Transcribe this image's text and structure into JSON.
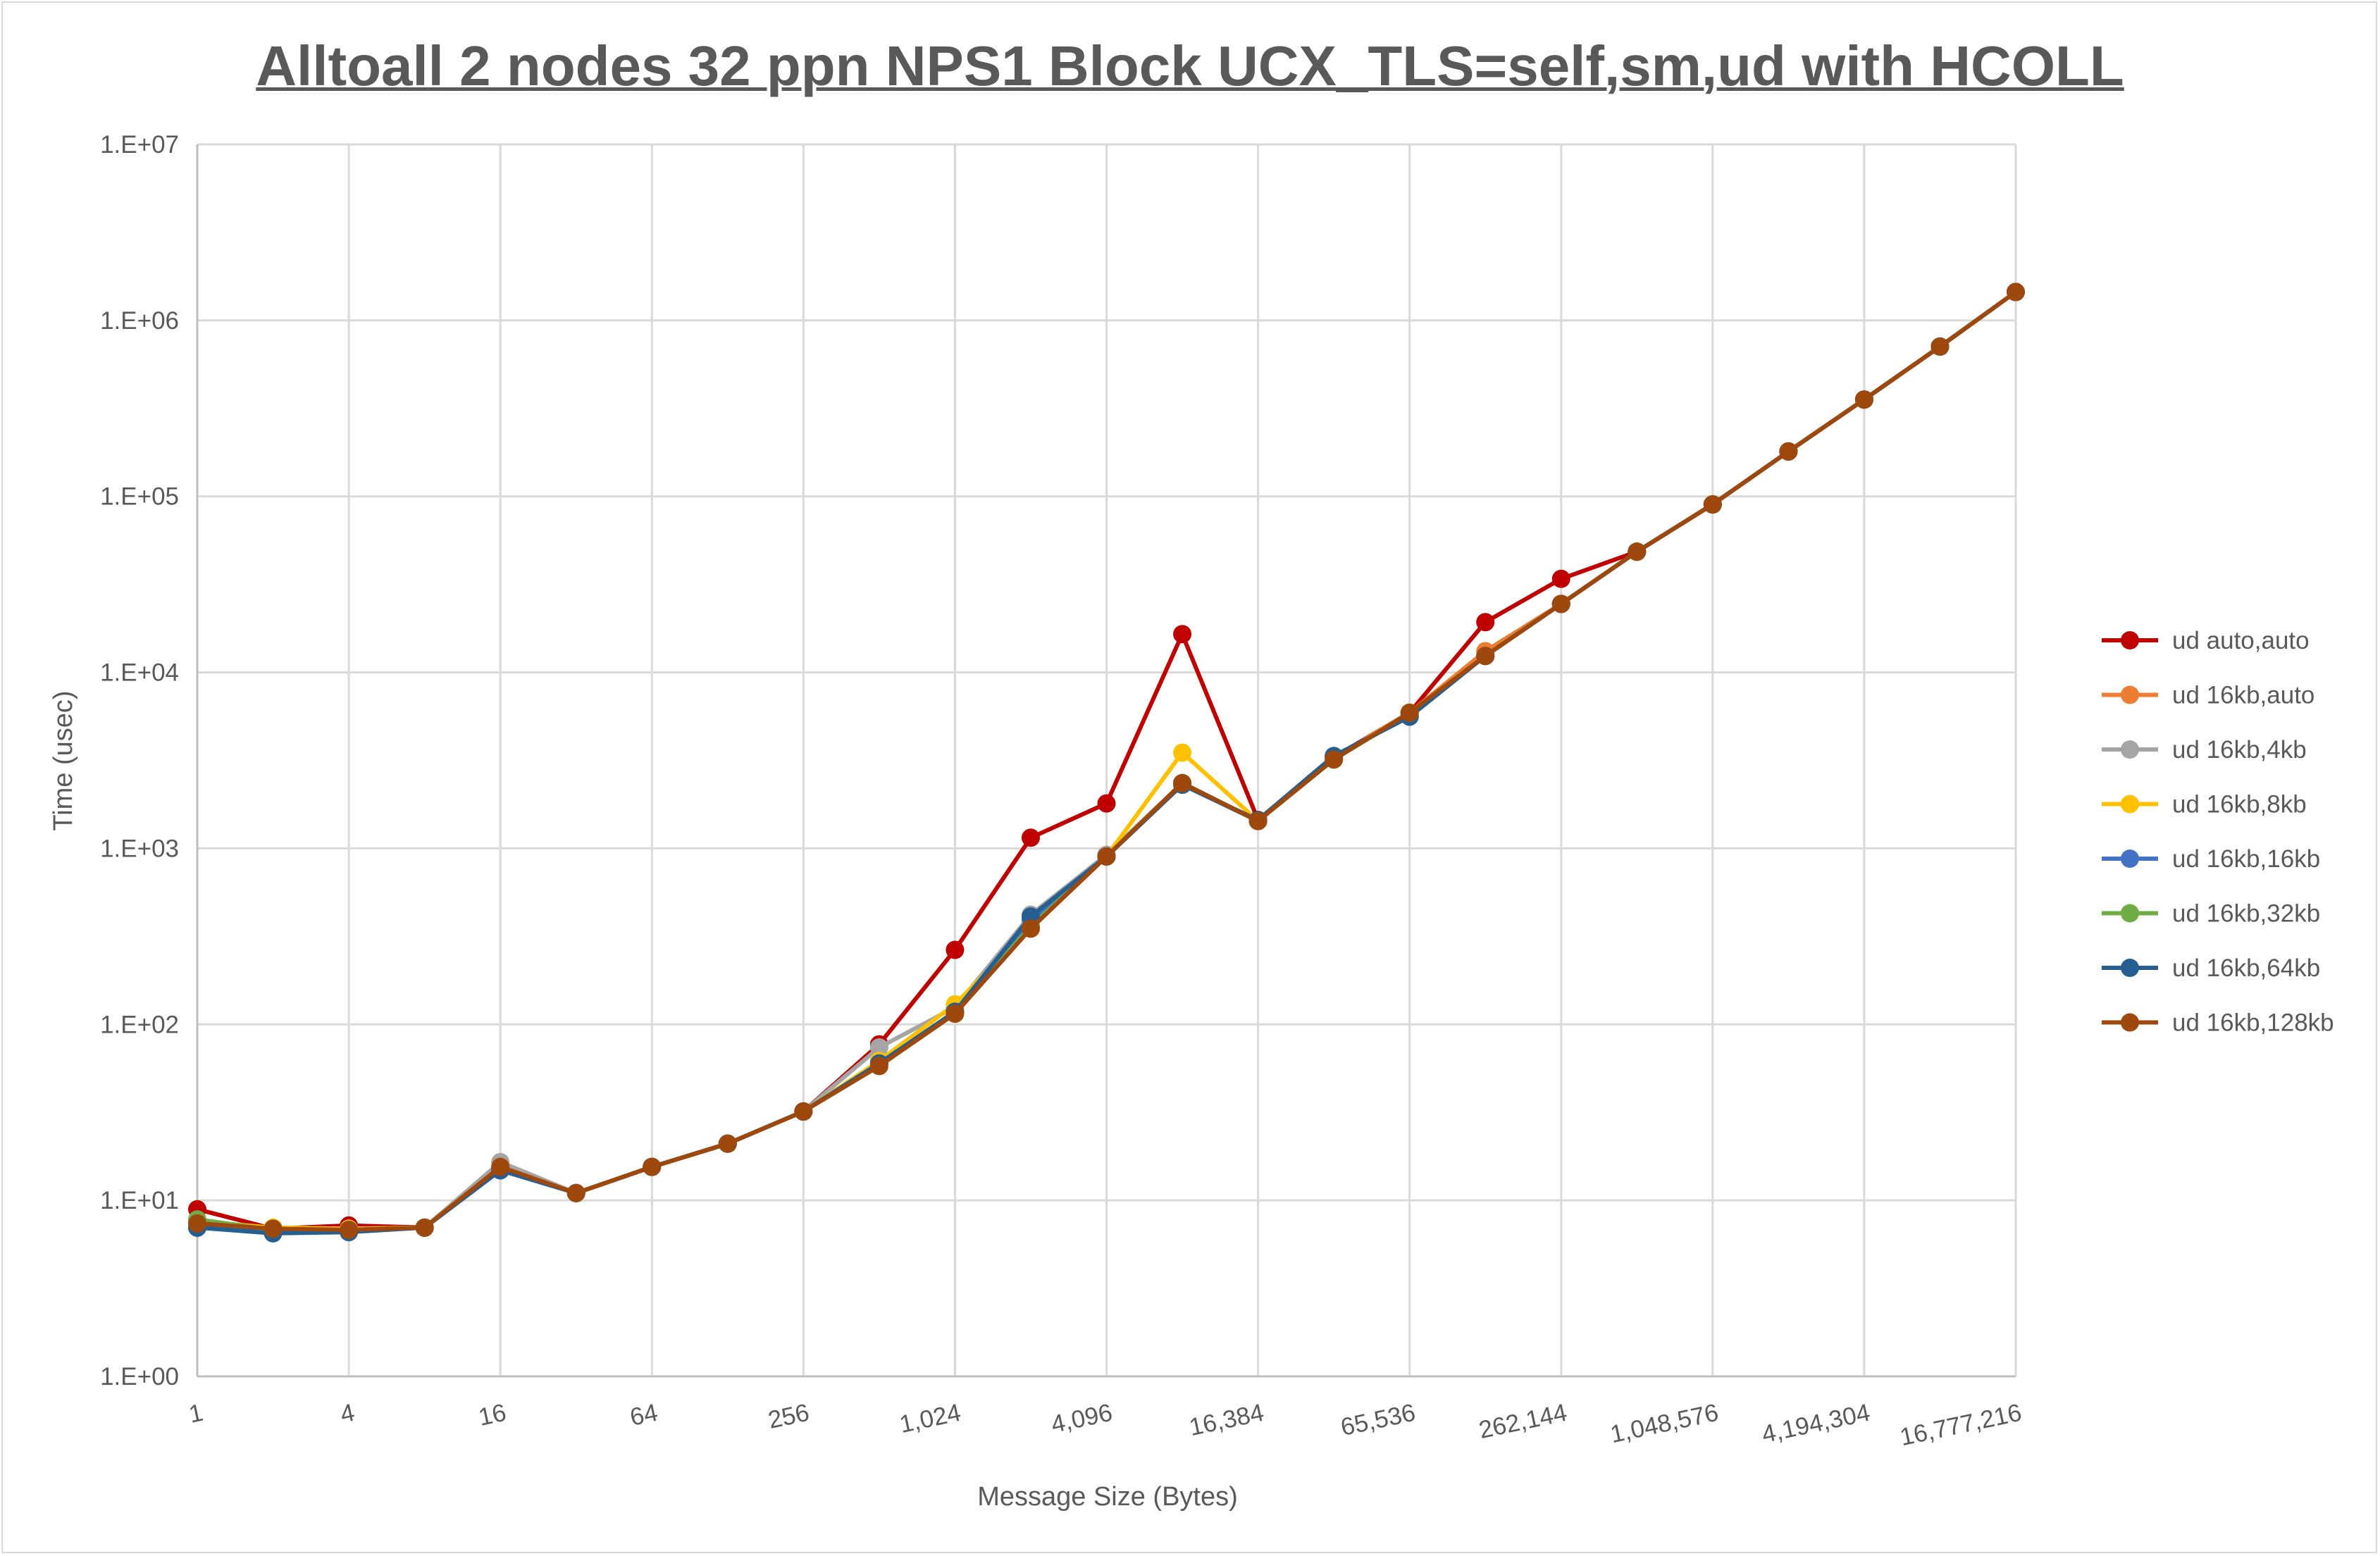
{
  "chart_data": {
    "type": "line",
    "title": "Alltoall 2 nodes 32 ppn NPS1 Block UCX_TLS=self,sm,ud with HCOLL",
    "xlabel": "Message Size (Bytes)",
    "ylabel": "Time (usec)",
    "xscale": "log2",
    "yscale": "log10",
    "ylim": [
      1,
      10000000
    ],
    "grid": true,
    "legend": "right",
    "x": [
      1,
      2,
      4,
      8,
      16,
      32,
      64,
      128,
      256,
      512,
      1024,
      2048,
      4096,
      8192,
      16384,
      32768,
      65536,
      131072,
      262144,
      524288,
      1048576,
      2097152,
      4194304,
      8388608,
      16777216
    ],
    "xtick_labels": [
      "1",
      "4",
      "16",
      "64",
      "256",
      "1,024",
      "4,096",
      "16,384",
      "65,536",
      "262,144",
      "1,048,576",
      "4,194,304",
      "16,777,216"
    ],
    "xtick_values": [
      1,
      4,
      16,
      64,
      256,
      1024,
      4096,
      16384,
      65536,
      262144,
      1048576,
      4194304,
      16777216
    ],
    "ytick_labels": [
      "1.E+00",
      "1.E+01",
      "1.E+02",
      "1.E+03",
      "1.E+04",
      "1.E+05",
      "1.E+06",
      "1.E+07"
    ],
    "ytick_values": [
      1,
      10,
      100,
      1000,
      10000,
      100000,
      1000000,
      10000000
    ],
    "series": [
      {
        "name": "ud auto,auto",
        "color": "#C00000",
        "values": [
          8.9,
          6.9,
          7.2,
          7.0,
          15.5,
          11,
          15.5,
          21,
          32,
          77,
          265,
          1150,
          1800,
          16500,
          1450,
          3300,
          5900,
          19300,
          34000,
          48500,
          90000,
          180000,
          355000,
          710000,
          1450000
        ]
      },
      {
        "name": "ud 16kb,auto",
        "color": "#ED7D31",
        "values": [
          7.5,
          6.9,
          6.9,
          7.0,
          15.5,
          11,
          15.5,
          21,
          32,
          60,
          118,
          360,
          900,
          2350,
          1430,
          3250,
          5900,
          13200,
          24500,
          48500,
          90000,
          180000,
          355000,
          710000,
          1450000
        ]
      },
      {
        "name": "ud 16kb,4kb",
        "color": "#A5A5A5",
        "values": [
          7.5,
          6.9,
          6.9,
          7.0,
          16.5,
          11,
          15.5,
          21,
          32,
          74,
          125,
          420,
          920,
          2350,
          1430,
          3250,
          5900,
          12400,
          24500,
          48500,
          90000,
          180000,
          355000,
          710000,
          1450000
        ]
      },
      {
        "name": "ud 16kb,8kb",
        "color": "#FFC000",
        "values": [
          7.6,
          7.0,
          6.9,
          7.0,
          15.5,
          11,
          15.5,
          21,
          32,
          62,
          130,
          360,
          900,
          3500,
          1430,
          3250,
          5900,
          12400,
          24500,
          48500,
          90000,
          180000,
          355000,
          710000,
          1450000
        ]
      },
      {
        "name": "ud 16kb,16kb",
        "color": "#4472C4",
        "values": [
          7.0,
          6.6,
          6.7,
          7.0,
          14.8,
          11,
          15.5,
          21,
          32,
          60,
          118,
          390,
          900,
          2300,
          1430,
          3300,
          5700,
          12400,
          24500,
          48500,
          90000,
          180000,
          355000,
          710000,
          1450000
        ]
      },
      {
        "name": "ud 16kb,32kb",
        "color": "#70AD47",
        "values": [
          7.8,
          6.8,
          6.8,
          7.0,
          15.3,
          11,
          15.5,
          21,
          32,
          60,
          118,
          360,
          900,
          2350,
          1430,
          3200,
          5800,
          12400,
          24500,
          48500,
          90000,
          180000,
          355000,
          710000,
          1450000
        ]
      },
      {
        "name": "ud 16kb,64kb",
        "color": "#255E91",
        "values": [
          7.0,
          6.5,
          6.6,
          7.0,
          14.9,
          11,
          15.5,
          21,
          32,
          60,
          118,
          410,
          900,
          2300,
          1450,
          3350,
          5600,
          12400,
          24500,
          48500,
          90000,
          180000,
          355000,
          710000,
          1450000
        ]
      },
      {
        "name": "ud 16kb,128kb",
        "color": "#9E480E",
        "values": [
          7.4,
          6.9,
          6.8,
          7.0,
          15.5,
          11,
          15.5,
          21,
          32,
          58,
          115,
          350,
          900,
          2350,
          1430,
          3200,
          5900,
          12400,
          24500,
          48500,
          90000,
          180000,
          355000,
          710000,
          1450000
        ]
      }
    ]
  }
}
